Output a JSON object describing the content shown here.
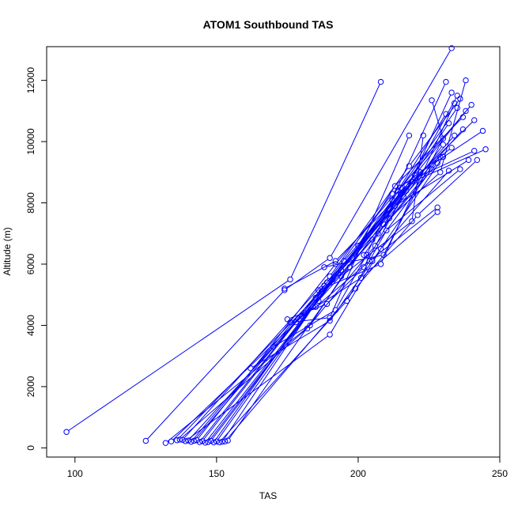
{
  "chart_data": {
    "type": "line",
    "title": "ATOM1 Southbound TAS",
    "xlabel": "TAS",
    "ylabel": "Altitude (m)",
    "xlim": [
      90,
      250
    ],
    "ylim": [
      -300,
      13100
    ],
    "x_ticks": [
      100,
      150,
      200,
      250
    ],
    "y_ticks": [
      0,
      2000,
      4000,
      6000,
      8000,
      10000,
      12000
    ],
    "y_tick_labels": [
      "0",
      "2000",
      "4000",
      "6000",
      "8000",
      "10000",
      "12000"
    ],
    "grid": false,
    "legend": "none",
    "marker": "open-circle",
    "series_color": "#0000ff",
    "series": [
      {
        "x": [
          97,
          176,
          208
        ],
        "y": [
          520,
          5500,
          11950
        ]
      },
      {
        "x": [
          125,
          174,
          190,
          233
        ],
        "y": [
          230,
          5150,
          6200,
          13050
        ]
      },
      {
        "x": [
          132,
          183,
          215,
          240
        ],
        "y": [
          160,
          4000,
          8500,
          11200
        ]
      },
      {
        "x": [
          134,
          186,
          212,
          235
        ],
        "y": [
          210,
          4800,
          8100,
          11100
        ]
      },
      {
        "x": [
          136,
          188,
          220,
          238
        ],
        "y": [
          250,
          5200,
          8900,
          11000
        ]
      },
      {
        "x": [
          138,
          190,
          218,
          236
        ],
        "y": [
          260,
          5600,
          9200,
          11400
        ]
      },
      {
        "x": [
          140,
          181,
          210,
          232
        ],
        "y": [
          240,
          4400,
          7600,
          10600
        ]
      },
      {
        "x": [
          143,
          192,
          214,
          231
        ],
        "y": [
          250,
          6000,
          8400,
          10900
        ]
      },
      {
        "x": [
          145,
          178,
          205,
          229
        ],
        "y": [
          220,
          4100,
          6800,
          9500
        ]
      },
      {
        "x": [
          147,
          184,
          207,
          228
        ],
        "y": [
          190,
          4600,
          7000,
          9300
        ]
      },
      {
        "x": [
          149,
          187,
          211,
          234
        ],
        "y": [
          180,
          5100,
          7800,
          10200
        ]
      },
      {
        "x": [
          150,
          191,
          216,
          237
        ],
        "y": [
          210,
          5500,
          8200,
          10400
        ]
      },
      {
        "x": [
          152,
          195,
          219,
          241
        ],
        "y": [
          200,
          6100,
          8700,
          10700
        ]
      },
      {
        "x": [
          154,
          197,
          222,
          244
        ],
        "y": [
          240,
          5900,
          9000,
          10350
        ]
      },
      {
        "x": [
          142,
          185,
          209,
          230
        ],
        "y": [
          230,
          4900,
          7300,
          9900
        ]
      },
      {
        "x": [
          141,
          188,
          213,
          239
        ],
        "y": [
          200,
          5300,
          7900,
          9400
        ]
      },
      {
        "x": [
          144,
          189,
          212,
          233
        ],
        "y": [
          190,
          5400,
          8300,
          9800
        ]
      },
      {
        "x": [
          146,
          193,
          217,
          245
        ],
        "y": [
          170,
          5700,
          8600,
          9750
        ]
      },
      {
        "x": [
          148,
          194,
          220,
          241
        ],
        "y": [
          230,
          5800,
          8800,
          9700
        ]
      },
      {
        "x": [
          137,
          182,
          206,
          226
        ],
        "y": [
          270,
          3900,
          6600,
          9100
        ]
      },
      {
        "x": [
          139,
          190,
          208,
          232
        ],
        "y": [
          220,
          3700,
          6500,
          9050
        ]
      },
      {
        "x": [
          151,
          196,
          210,
          236
        ],
        "y": [
          180,
          4800,
          7100,
          9100
        ]
      },
      {
        "x": [
          153,
          199,
          221,
          242
        ],
        "y": [
          210,
          5200,
          7600,
          9400
        ]
      },
      {
        "x": [
          162,
          190,
          205,
          230
        ],
        "y": [
          2600,
          4150,
          6100,
          9500
        ]
      },
      {
        "x": [
          170,
          192,
          203,
          231
        ],
        "y": [
          3300,
          4500,
          6300,
          11950
        ]
      },
      {
        "x": [
          175,
          189,
          202,
          235
        ],
        "y": [
          4200,
          4700,
          5900,
          11500
        ]
      },
      {
        "x": [
          180,
          201,
          228
        ],
        "y": [
          4300,
          5550,
          7700
        ]
      },
      {
        "x": [
          185,
          204,
          228
        ],
        "y": [
          4600,
          6100,
          7850
        ]
      },
      {
        "x": [
          186,
          208,
          234
        ],
        "y": [
          5150,
          6000,
          11250
        ]
      },
      {
        "x": [
          188,
          209,
          230,
          226
        ],
        "y": [
          5900,
          6300,
          10100,
          11350
        ]
      },
      {
        "x": [
          194,
          219,
          223
        ],
        "y": [
          5600,
          7400,
          10200
        ]
      },
      {
        "x": [
          198,
          217,
          233
        ],
        "y": [
          6200,
          8400,
          11600
        ]
      },
      {
        "x": [
          200,
          213,
          237
        ],
        "y": [
          6600,
          8550,
          10800
        ]
      },
      {
        "x": [
          202,
          211,
          229,
          238
        ],
        "y": [
          6300,
          7500,
          9000,
          12000
        ]
      },
      {
        "x": [
          176,
          190,
          218
        ],
        "y": [
          4100,
          4250,
          10200
        ]
      },
      {
        "x": [
          174,
          192,
          215
        ],
        "y": [
          5200,
          6100,
          8300
        ]
      }
    ]
  }
}
